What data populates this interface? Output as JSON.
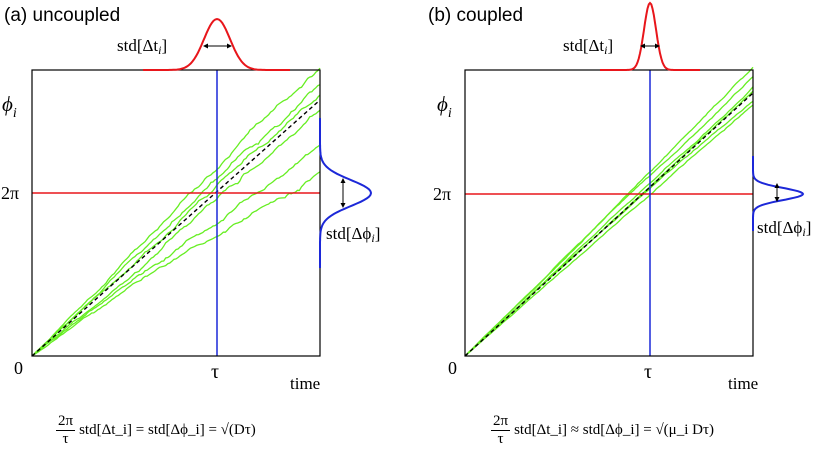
{
  "panels": {
    "a": {
      "title": "(a) uncoupled",
      "y_label": "ϕ",
      "y_label_sub": "i",
      "y_tick_2pi": "2π",
      "origin": "0",
      "x_tick_tau": "τ",
      "x_label": "time",
      "std_t_label": "std[Δt",
      "std_t_sub": "i",
      "std_phi_label": "std[Δϕ",
      "std_phi_sub": "i",
      "formula_num": "2π",
      "formula_den": "τ",
      "formula_rest": "std[Δt_i] = std[Δϕ_i] = √(Dτ)"
    },
    "b": {
      "title": "(b) coupled",
      "y_label": "ϕ",
      "y_label_sub": "i",
      "y_tick_2pi": "2π",
      "origin": "0",
      "x_tick_tau": "τ",
      "x_label": "time",
      "std_t_label": "std[Δt",
      "std_t_sub": "i",
      "std_phi_label": "std[Δϕ",
      "std_phi_sub": "i",
      "formula_num": "2π",
      "formula_den": "τ",
      "formula_rest": "std[Δt_i] ≈ std[Δϕ_i] = √(μ_i Dτ)"
    }
  },
  "colors": {
    "trajectory": "#66ee22",
    "time_distribution": "#e8161b",
    "phase_distribution": "#1c28d8",
    "mean_line": "#000000"
  }
}
